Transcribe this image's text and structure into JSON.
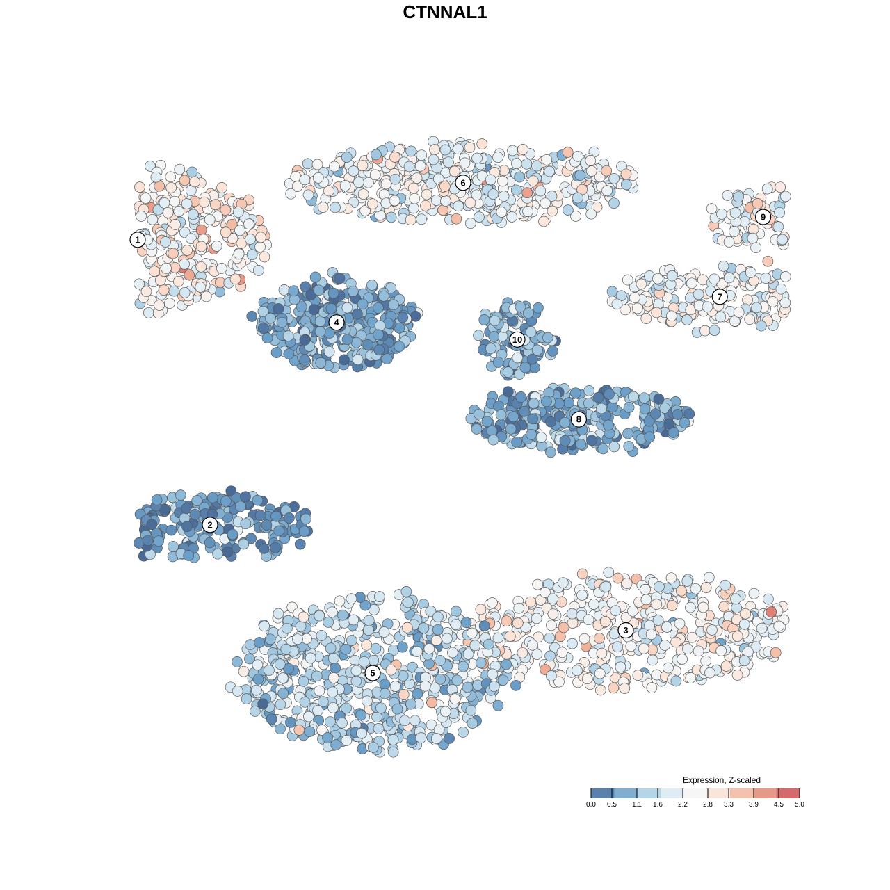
{
  "chart_data": {
    "type": "scatter",
    "title": "CTNNAL1",
    "xlabel": "",
    "ylabel": "",
    "grid": false,
    "axes_visible": false,
    "legend": {
      "title": "Expression, Z-scaled",
      "placement": "bottom-right",
      "ticks": [
        "0.0",
        "0.5",
        "1.1",
        "1.6",
        "2.2",
        "2.8",
        "3.3",
        "3.9",
        "4.5",
        "5.0"
      ],
      "range": [
        0,
        5
      ],
      "palette": [
        "#4a6a96",
        "#6a9ec8",
        "#a9cde3",
        "#dcebf4",
        "#f6f6f6",
        "#fbe3d6",
        "#f2b8a0",
        "#e2897c",
        "#c9525c"
      ]
    },
    "clusters": [
      {
        "label": "1",
        "x": -8.5,
        "y": 7.2,
        "rx": 3.4,
        "ry": 2.4,
        "mean": 2.6,
        "sd": 0.55,
        "n": 520
      },
      {
        "label": "6",
        "x": 0.5,
        "y": 9.2,
        "rx": 4.6,
        "ry": 1.3,
        "mean": 2.2,
        "sd": 0.55,
        "n": 460
      },
      {
        "label": "9",
        "x": 8.8,
        "y": 8.0,
        "rx": 1.6,
        "ry": 1.1,
        "mean": 2.3,
        "sd": 0.55,
        "n": 90
      },
      {
        "label": "7",
        "x": 7.6,
        "y": 5.2,
        "rx": 3.0,
        "ry": 1.0,
        "mean": 2.3,
        "sd": 0.55,
        "n": 200
      },
      {
        "label": "4",
        "x": -3.0,
        "y": 4.3,
        "rx": 2.0,
        "ry": 1.5,
        "mean": 0.8,
        "sd": 0.45,
        "n": 360
      },
      {
        "label": "10",
        "x": 2.0,
        "y": 3.7,
        "rx": 0.9,
        "ry": 1.2,
        "mean": 0.9,
        "sd": 0.45,
        "n": 110
      },
      {
        "label": "8",
        "x": 3.7,
        "y": 0.9,
        "rx": 3.0,
        "ry": 1.0,
        "mean": 0.8,
        "sd": 0.45,
        "n": 280
      },
      {
        "label": "2",
        "x": -6.5,
        "y": -2.8,
        "rx": 2.7,
        "ry": 1.1,
        "mean": 0.5,
        "sd": 0.4,
        "n": 230
      },
      {
        "label": "3",
        "x": 5.0,
        "y": -6.5,
        "rx": 4.4,
        "ry": 1.9,
        "mean": 2.4,
        "sd": 0.55,
        "n": 460
      },
      {
        "label": "5",
        "x": -2.0,
        "y": -8.0,
        "rx": 3.6,
        "ry": 2.6,
        "mean": 1.5,
        "sd": 0.55,
        "n": 600
      }
    ]
  }
}
